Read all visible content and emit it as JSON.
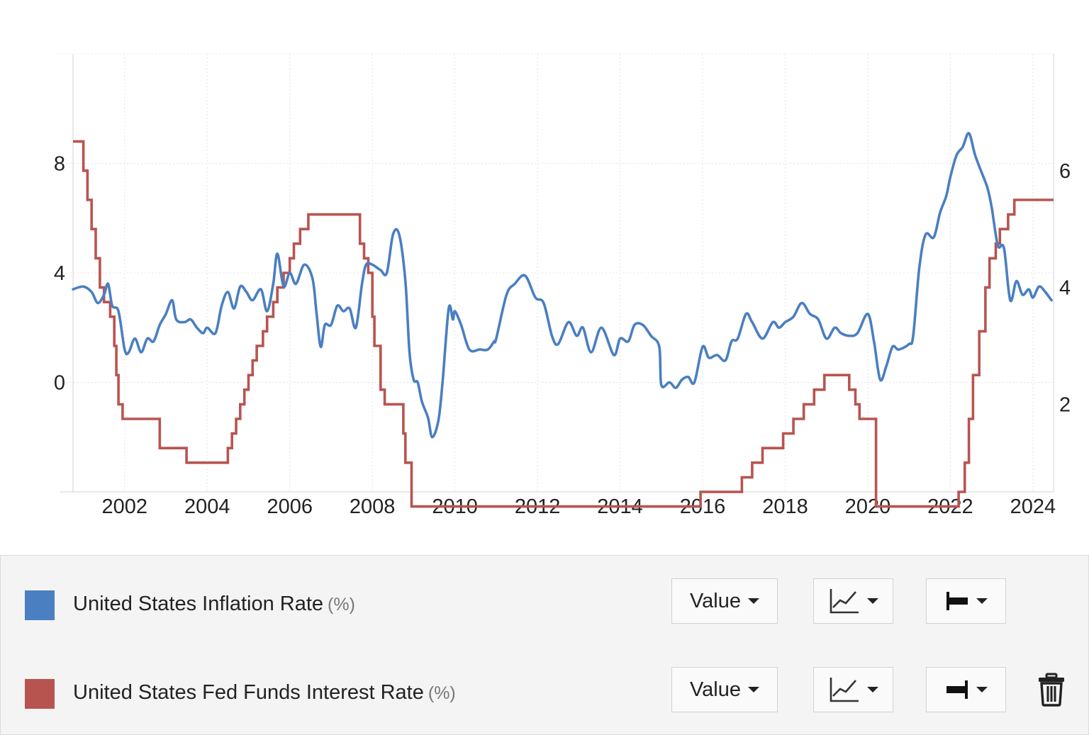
{
  "chart_data": {
    "type": "line",
    "x_ticks": [
      "2002",
      "2004",
      "2006",
      "2008",
      "2010",
      "2012",
      "2014",
      "2016",
      "2018",
      "2020",
      "2022",
      "2024"
    ],
    "x_range": [
      2000.75,
      2024.5
    ],
    "left_axis": {
      "ticks": [
        "0",
        "4",
        "8"
      ],
      "range": [
        -4,
        12
      ]
    },
    "right_axis": {
      "ticks": [
        "2",
        "4",
        "6"
      ],
      "range": [
        0.5,
        8.0
      ]
    },
    "grid": true,
    "legend_position": "bottom",
    "series": [
      {
        "name": "United States Inflation Rate",
        "unit": "(%)",
        "color": "#4a7fc1",
        "axis": "left",
        "points": [
          [
            2000.75,
            3.4
          ],
          [
            2001.0,
            3.5
          ],
          [
            2001.2,
            3.3
          ],
          [
            2001.35,
            2.9
          ],
          [
            2001.5,
            3.2
          ],
          [
            2001.6,
            3.6
          ],
          [
            2001.7,
            2.8
          ],
          [
            2001.85,
            2.6
          ],
          [
            2002.0,
            1.2
          ],
          [
            2002.1,
            1.1
          ],
          [
            2002.25,
            1.6
          ],
          [
            2002.4,
            1.1
          ],
          [
            2002.55,
            1.6
          ],
          [
            2002.7,
            1.5
          ],
          [
            2002.85,
            2.1
          ],
          [
            2003.0,
            2.5
          ],
          [
            2003.15,
            3.0
          ],
          [
            2003.25,
            2.3
          ],
          [
            2003.45,
            2.2
          ],
          [
            2003.6,
            2.3
          ],
          [
            2003.75,
            2.0
          ],
          [
            2003.9,
            1.8
          ],
          [
            2004.0,
            2.0
          ],
          [
            2004.2,
            1.8
          ],
          [
            2004.35,
            2.8
          ],
          [
            2004.5,
            3.3
          ],
          [
            2004.65,
            2.7
          ],
          [
            2004.8,
            3.5
          ],
          [
            2004.95,
            3.3
          ],
          [
            2005.1,
            3.0
          ],
          [
            2005.3,
            3.4
          ],
          [
            2005.45,
            2.6
          ],
          [
            2005.6,
            3.6
          ],
          [
            2005.7,
            4.7
          ],
          [
            2005.85,
            3.5
          ],
          [
            2006.0,
            4.0
          ],
          [
            2006.15,
            3.6
          ],
          [
            2006.35,
            4.3
          ],
          [
            2006.55,
            3.8
          ],
          [
            2006.65,
            2.5
          ],
          [
            2006.75,
            1.3
          ],
          [
            2006.85,
            2.1
          ],
          [
            2007.0,
            2.1
          ],
          [
            2007.15,
            2.8
          ],
          [
            2007.3,
            2.6
          ],
          [
            2007.45,
            2.7
          ],
          [
            2007.6,
            2.0
          ],
          [
            2007.75,
            3.6
          ],
          [
            2007.85,
            4.3
          ],
          [
            2008.0,
            4.3
          ],
          [
            2008.2,
            4.1
          ],
          [
            2008.35,
            4.0
          ],
          [
            2008.5,
            5.4
          ],
          [
            2008.65,
            5.4
          ],
          [
            2008.8,
            3.7
          ],
          [
            2008.9,
            1.1
          ],
          [
            2009.0,
            0.1
          ],
          [
            2009.1,
            0.0
          ],
          [
            2009.2,
            -0.7
          ],
          [
            2009.35,
            -1.3
          ],
          [
            2009.45,
            -2.0
          ],
          [
            2009.6,
            -1.4
          ],
          [
            2009.7,
            0.0
          ],
          [
            2009.85,
            2.7
          ],
          [
            2009.95,
            2.3
          ],
          [
            2010.0,
            2.6
          ],
          [
            2010.15,
            2.1
          ],
          [
            2010.35,
            1.2
          ],
          [
            2010.6,
            1.2
          ],
          [
            2010.8,
            1.2
          ],
          [
            2010.95,
            1.5
          ],
          [
            2011.0,
            1.6
          ],
          [
            2011.25,
            3.2
          ],
          [
            2011.45,
            3.6
          ],
          [
            2011.7,
            3.9
          ],
          [
            2011.95,
            3.1
          ],
          [
            2012.15,
            2.9
          ],
          [
            2012.35,
            1.7
          ],
          [
            2012.5,
            1.4
          ],
          [
            2012.75,
            2.2
          ],
          [
            2012.95,
            1.7
          ],
          [
            2013.1,
            2.0
          ],
          [
            2013.3,
            1.1
          ],
          [
            2013.55,
            2.0
          ],
          [
            2013.85,
            1.0
          ],
          [
            2014.0,
            1.6
          ],
          [
            2014.2,
            1.5
          ],
          [
            2014.35,
            2.1
          ],
          [
            2014.55,
            2.1
          ],
          [
            2014.75,
            1.7
          ],
          [
            2014.95,
            1.3
          ],
          [
            2015.0,
            -0.1
          ],
          [
            2015.2,
            0.0
          ],
          [
            2015.35,
            -0.2
          ],
          [
            2015.5,
            0.1
          ],
          [
            2015.65,
            0.2
          ],
          [
            2015.8,
            0.0
          ],
          [
            2016.0,
            1.3
          ],
          [
            2016.15,
            0.9
          ],
          [
            2016.35,
            1.0
          ],
          [
            2016.55,
            0.8
          ],
          [
            2016.7,
            1.5
          ],
          [
            2016.85,
            1.6
          ],
          [
            2017.05,
            2.5
          ],
          [
            2017.2,
            2.2
          ],
          [
            2017.45,
            1.6
          ],
          [
            2017.7,
            2.2
          ],
          [
            2017.85,
            2.0
          ],
          [
            2018.0,
            2.2
          ],
          [
            2018.2,
            2.4
          ],
          [
            2018.4,
            2.9
          ],
          [
            2018.6,
            2.5
          ],
          [
            2018.8,
            2.3
          ],
          [
            2019.0,
            1.6
          ],
          [
            2019.2,
            2.0
          ],
          [
            2019.35,
            1.8
          ],
          [
            2019.55,
            1.7
          ],
          [
            2019.75,
            1.8
          ],
          [
            2020.0,
            2.5
          ],
          [
            2020.15,
            1.5
          ],
          [
            2020.3,
            0.1
          ],
          [
            2020.45,
            0.6
          ],
          [
            2020.6,
            1.3
          ],
          [
            2020.75,
            1.2
          ],
          [
            2021.0,
            1.4
          ],
          [
            2021.1,
            1.7
          ],
          [
            2021.25,
            4.2
          ],
          [
            2021.4,
            5.4
          ],
          [
            2021.6,
            5.3
          ],
          [
            2021.75,
            6.2
          ],
          [
            2021.9,
            6.8
          ],
          [
            2022.0,
            7.5
          ],
          [
            2022.15,
            8.3
          ],
          [
            2022.3,
            8.6
          ],
          [
            2022.45,
            9.1
          ],
          [
            2022.6,
            8.3
          ],
          [
            2022.75,
            7.7
          ],
          [
            2022.9,
            7.1
          ],
          [
            2023.0,
            6.4
          ],
          [
            2023.15,
            5.0
          ],
          [
            2023.3,
            4.9
          ],
          [
            2023.45,
            3.0
          ],
          [
            2023.6,
            3.7
          ],
          [
            2023.75,
            3.2
          ],
          [
            2023.9,
            3.4
          ],
          [
            2024.0,
            3.1
          ],
          [
            2024.15,
            3.5
          ],
          [
            2024.3,
            3.3
          ],
          [
            2024.45,
            3.0
          ]
        ]
      },
      {
        "name": "United States Fed Funds Interest Rate",
        "unit": "(%)",
        "color": "#b85450",
        "axis": "right",
        "step_values": [
          [
            2000.75,
            6.5
          ],
          [
            2001.0,
            6.0
          ],
          [
            2001.1,
            5.5
          ],
          [
            2001.2,
            5.0
          ],
          [
            2001.3,
            4.5
          ],
          [
            2001.4,
            4.0
          ],
          [
            2001.5,
            3.75
          ],
          [
            2001.65,
            3.5
          ],
          [
            2001.75,
            3.0
          ],
          [
            2001.8,
            2.5
          ],
          [
            2001.85,
            2.0
          ],
          [
            2001.95,
            1.75
          ],
          [
            2002.85,
            1.25
          ],
          [
            2003.5,
            1.0
          ],
          [
            2004.5,
            1.25
          ],
          [
            2004.6,
            1.5
          ],
          [
            2004.7,
            1.75
          ],
          [
            2004.8,
            2.0
          ],
          [
            2004.9,
            2.25
          ],
          [
            2005.0,
            2.5
          ],
          [
            2005.1,
            2.75
          ],
          [
            2005.2,
            3.0
          ],
          [
            2005.35,
            3.25
          ],
          [
            2005.45,
            3.5
          ],
          [
            2005.6,
            3.75
          ],
          [
            2005.7,
            4.0
          ],
          [
            2005.85,
            4.25
          ],
          [
            2006.0,
            4.5
          ],
          [
            2006.1,
            4.75
          ],
          [
            2006.25,
            5.0
          ],
          [
            2006.45,
            5.25
          ],
          [
            2007.7,
            4.75
          ],
          [
            2007.8,
            4.5
          ],
          [
            2007.9,
            4.25
          ],
          [
            2008.0,
            3.5
          ],
          [
            2008.05,
            3.0
          ],
          [
            2008.2,
            2.25
          ],
          [
            2008.3,
            2.0
          ],
          [
            2008.75,
            1.5
          ],
          [
            2008.8,
            1.0
          ],
          [
            2008.95,
            0.25
          ],
          [
            2015.95,
            0.5
          ],
          [
            2016.95,
            0.75
          ],
          [
            2017.2,
            1.0
          ],
          [
            2017.45,
            1.25
          ],
          [
            2017.95,
            1.5
          ],
          [
            2018.2,
            1.75
          ],
          [
            2018.45,
            2.0
          ],
          [
            2018.7,
            2.25
          ],
          [
            2018.95,
            2.5
          ],
          [
            2019.55,
            2.25
          ],
          [
            2019.7,
            2.0
          ],
          [
            2019.8,
            1.75
          ],
          [
            2020.2,
            0.25
          ],
          [
            2022.2,
            0.5
          ],
          [
            2022.35,
            1.0
          ],
          [
            2022.45,
            1.75
          ],
          [
            2022.55,
            2.5
          ],
          [
            2022.7,
            3.25
          ],
          [
            2022.85,
            4.0
          ],
          [
            2022.95,
            4.5
          ],
          [
            2023.1,
            4.75
          ],
          [
            2023.2,
            5.0
          ],
          [
            2023.4,
            5.25
          ],
          [
            2023.55,
            5.5
          ],
          [
            2024.5,
            5.5
          ]
        ]
      }
    ]
  },
  "legend": {
    "rows": [
      {
        "label": "United States Inflation Rate",
        "unit": "(%)",
        "value_button": "Value",
        "type_icon": "line-chart-icon",
        "axis_icon": "axis-left-icon"
      },
      {
        "label": "United States Fed Funds Interest Rate",
        "unit": "(%)",
        "value_button": "Value",
        "type_icon": "line-chart-icon",
        "axis_icon": "axis-right-icon",
        "delete_icon": "trash-icon"
      }
    ]
  }
}
